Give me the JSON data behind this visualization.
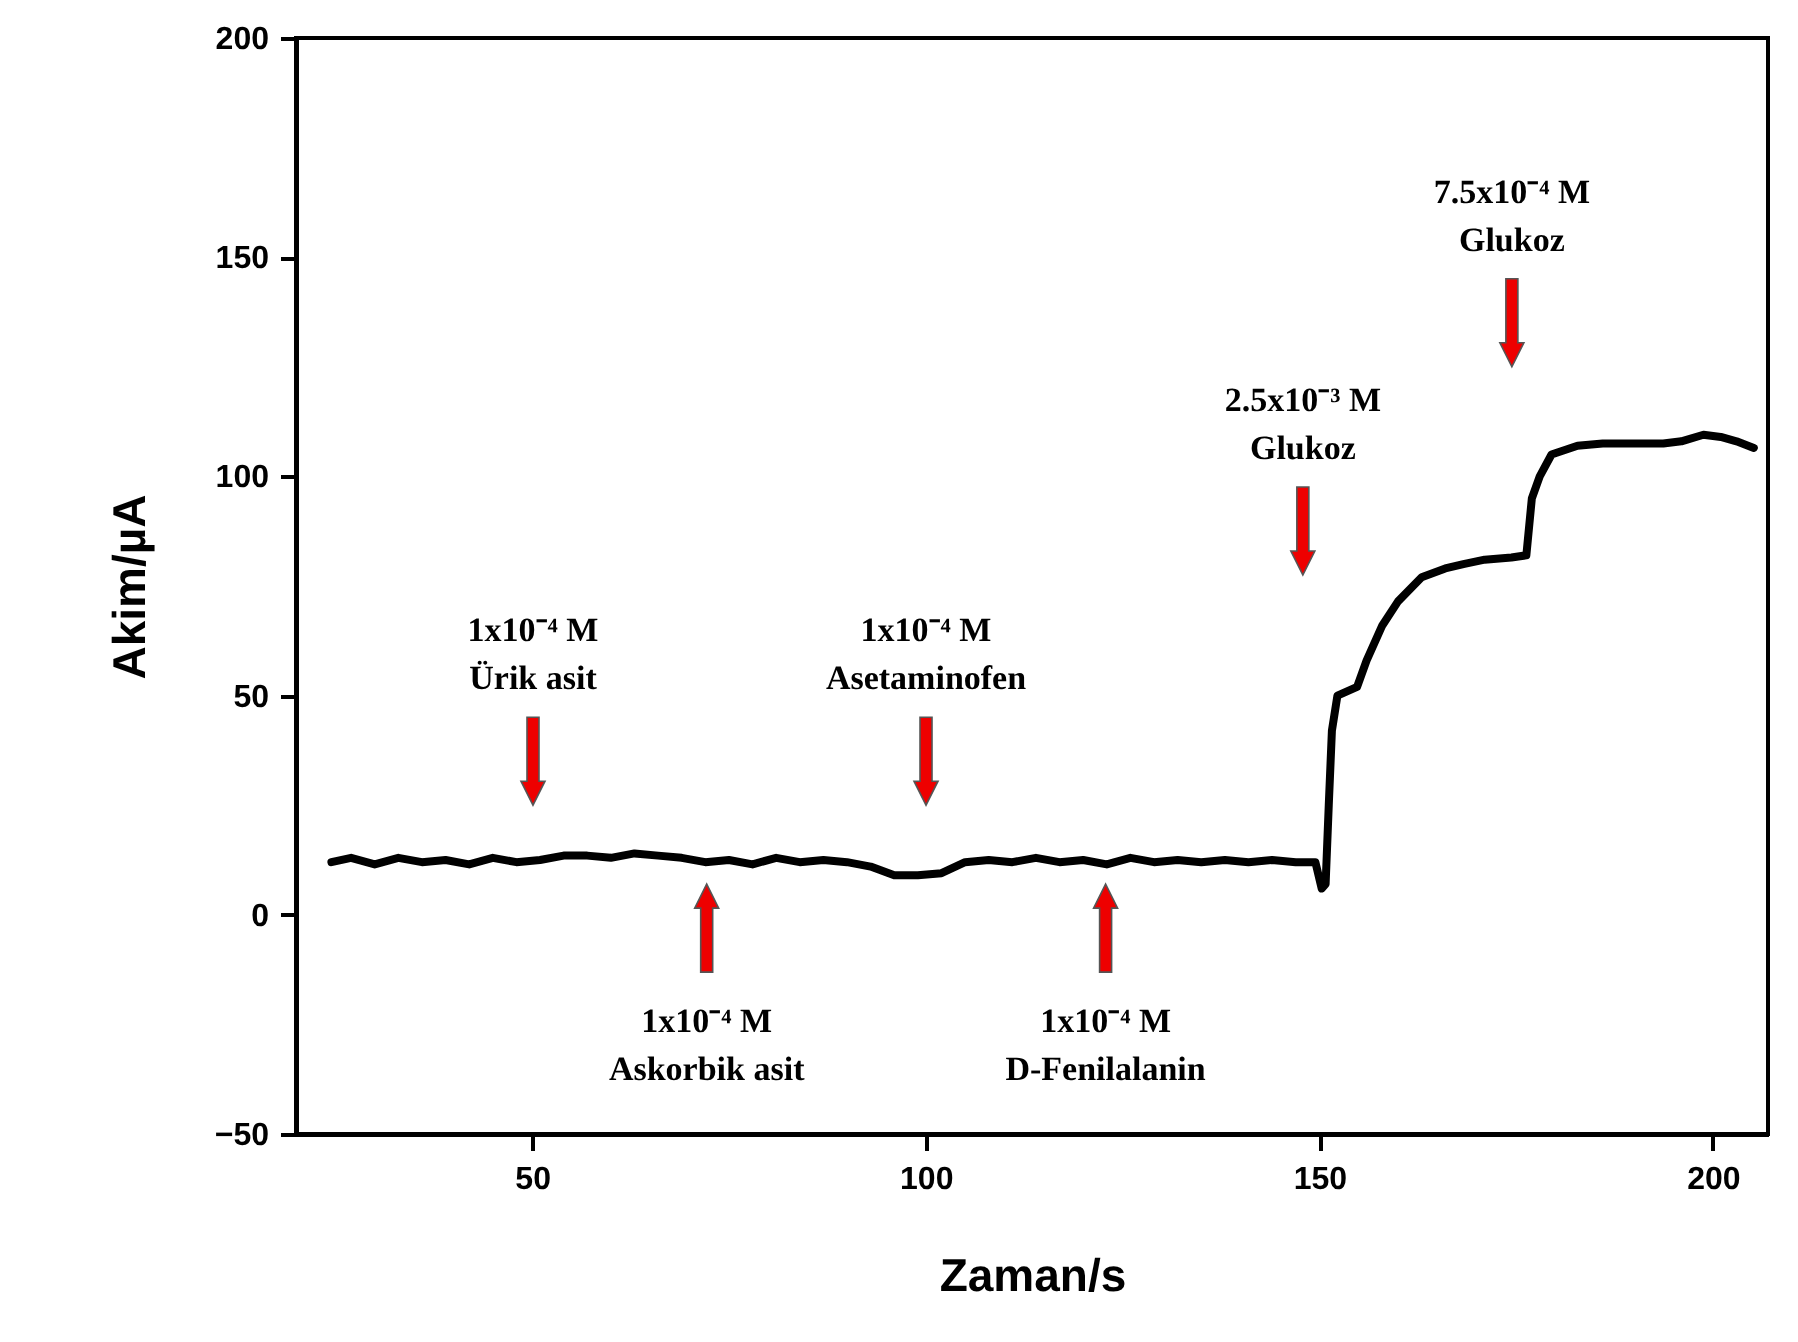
{
  "chart_data": {
    "type": "line",
    "xlabel": "Zaman/s",
    "ylabel": "Akim/µA",
    "xlim": [
      20,
      207
    ],
    "xticks": [
      50,
      100,
      150,
      200
    ],
    "ylim": [
      -50,
      200
    ],
    "yticks": [
      -50,
      0,
      50,
      100,
      150,
      200
    ],
    "grid": false,
    "marker": "none",
    "line_style": "solid",
    "series": [
      {
        "color": "#000000",
        "x": [
          24.5,
          27,
          30,
          33,
          36,
          39,
          42,
          45,
          48,
          51,
          54,
          57,
          60,
          63,
          66,
          69,
          72,
          75,
          78,
          81,
          84,
          87,
          90,
          93,
          96,
          99,
          102,
          105,
          108,
          111,
          114,
          117,
          120,
          123,
          126,
          129,
          132,
          135,
          138,
          141,
          144,
          147,
          149.5,
          150.3,
          150.8,
          151.2,
          151.6,
          152.3,
          154.8,
          156,
          158,
          160,
          163,
          166,
          168.3,
          171,
          174.4,
          176.3,
          177,
          178,
          179.5,
          182.8,
          186,
          190,
          193.7,
          196,
          198.8,
          201,
          203,
          205.2
        ],
        "values": [
          12,
          13,
          11.5,
          13,
          12,
          12.5,
          11.5,
          13,
          12,
          12.5,
          13.5,
          13.5,
          13,
          14,
          13.5,
          13,
          12,
          12.5,
          11.5,
          13,
          12,
          12.5,
          12,
          11,
          9,
          9,
          9.5,
          12,
          12.5,
          12,
          13,
          12,
          12.5,
          11.5,
          13,
          12,
          12.5,
          12,
          12.5,
          12,
          12.5,
          12,
          12,
          6,
          7,
          25,
          42,
          50,
          52,
          58,
          66,
          71.5,
          77,
          79,
          80,
          81,
          81.5,
          82,
          95,
          100,
          105,
          107,
          107.5,
          107.5,
          107.5,
          108,
          109.5,
          109,
          108,
          106.5
        ]
      }
    ],
    "annotations": [
      "1x10⁻⁴ M\nÜrik asit",
      "1x10⁻⁴ M\nAskorbik asit",
      "1x10⁻⁴ M\nAsetaminofen",
      "1x10⁻⁴ M\nD-Fenilalanin",
      "2.5x10⁻³ M\nGlukoz",
      "7.5x10⁻⁴ M\nGlukoz"
    ]
  }
}
